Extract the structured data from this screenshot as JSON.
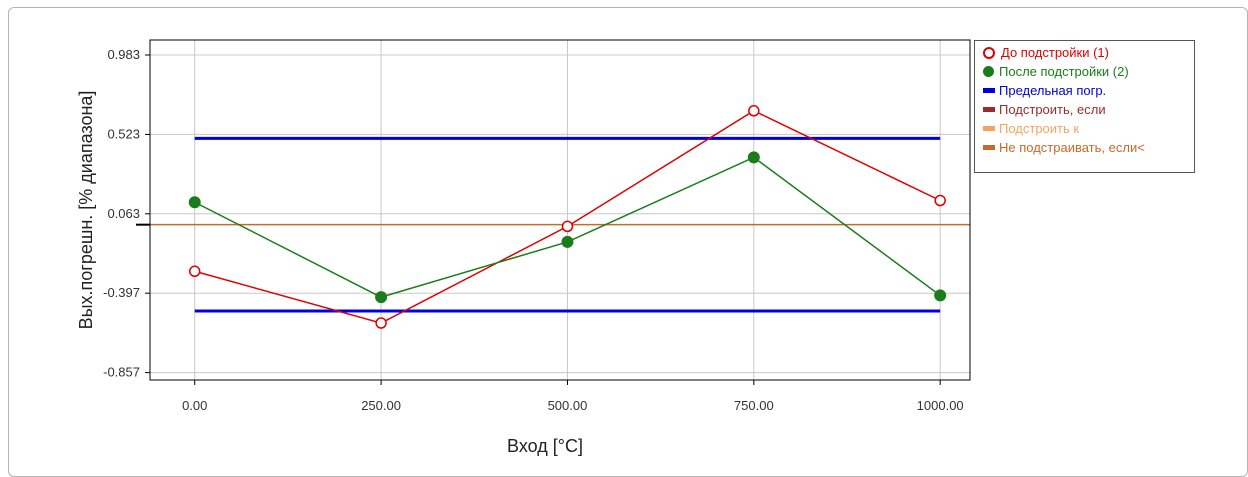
{
  "chart_data": {
    "type": "line",
    "xlabel": "Вход [°C]",
    "ylabel": "Вых.погрешн. [% диапазона]",
    "x": [
      0,
      250,
      500,
      750,
      1000
    ],
    "x_tick_labels": [
      "0.00",
      "250.00",
      "500.00",
      "750.00",
      "1000.00"
    ],
    "y_ticks": [
      0.983,
      0.523,
      0.063,
      -0.397,
      -0.857
    ],
    "y_tick_labels": [
      "0.983",
      "0.523",
      "0.063",
      "-0.397",
      "-0.857"
    ],
    "xlim": [
      -60,
      1040
    ],
    "ylim": [
      -0.9,
      1.07
    ],
    "grid": true,
    "legend_position": "right",
    "series": [
      {
        "name": "До подстройки (1)",
        "values": [
          -0.27,
          -0.57,
          -0.01,
          0.66,
          0.14
        ],
        "color": "#e00000",
        "marker": "open-circle"
      },
      {
        "name": "После подстройки (2)",
        "values": [
          0.13,
          -0.42,
          -0.1,
          0.39,
          -0.41
        ],
        "color": "#1a7d1a",
        "marker": "filled-circle"
      }
    ],
    "reference_lines": [
      {
        "name": "Предельная погр.",
        "values": [
          0.5,
          -0.5
        ],
        "color": "#0000e0"
      },
      {
        "name": "Подстроить, если",
        "values": [],
        "color": "#9e2a2a"
      },
      {
        "name": "Подстроить к",
        "values": [],
        "color": "#f4a460"
      },
      {
        "name": "Не подстраивать, если<",
        "values": [
          0.0
        ],
        "color": "#c8682a"
      }
    ]
  },
  "legend": [
    {
      "label": "До подстройки (1)",
      "color": "#e00000",
      "swatch": "open-circle"
    },
    {
      "label": "После подстройки (2)",
      "color": "#1a7d1a",
      "swatch": "filled-circle"
    },
    {
      "label": "Предельная погр.",
      "color": "#0000e0",
      "swatch": "bar"
    },
    {
      "label": "Подстроить, если",
      "color": "#9e2a2a",
      "swatch": "bar"
    },
    {
      "label": "Подстроить к",
      "color": "#f4a460",
      "swatch": "bar"
    },
    {
      "label": "Не подстраивать, если<",
      "color": "#c8682a",
      "swatch": "bar"
    }
  ]
}
